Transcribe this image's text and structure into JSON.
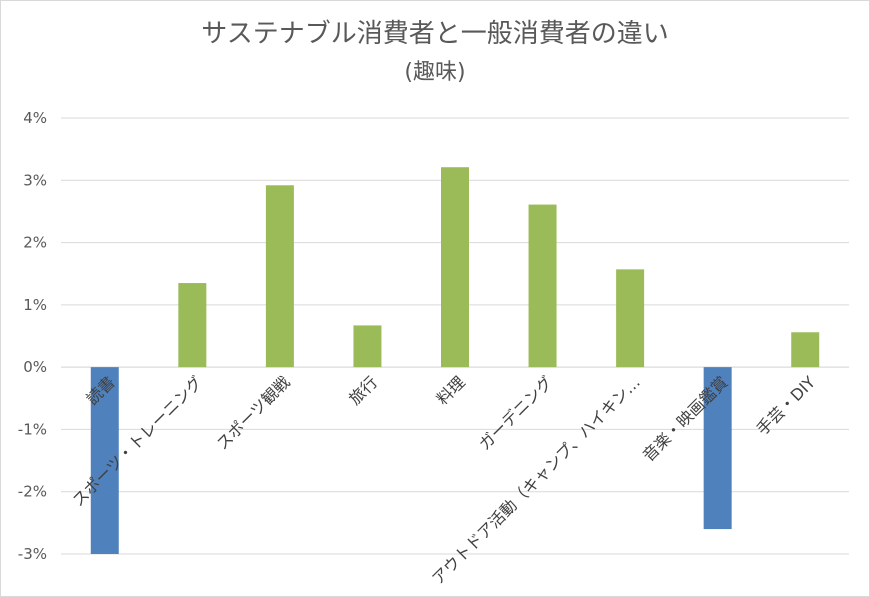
{
  "chart_data": {
    "type": "bar",
    "title": "サステナブル消費者と一般消費者の違い",
    "subtitle": "(趣味)",
    "categories": [
      "読書",
      "スポーツ・トレーニング",
      "スポーツ観戦",
      "旅行",
      "料理",
      "ガーデニング",
      "アウトドア活動（キャンプ、ハイキン…",
      "音楽・映画鑑賞",
      "手芸・DIY"
    ],
    "values": [
      -3.0,
      1.35,
      2.92,
      0.67,
      3.21,
      2.61,
      1.57,
      -2.6,
      0.56
    ],
    "unit": "%",
    "ylim": [
      -3,
      4
    ],
    "yticks": [
      4,
      3,
      2,
      1,
      0,
      -1,
      -2,
      -3
    ],
    "ytick_labels": [
      "4%",
      "3%",
      "2%",
      "1%",
      "0%",
      "-1%",
      "-2%",
      "-3%"
    ],
    "colors": {
      "positive": "#9bbb59",
      "negative": "#4f81bd",
      "grid": "#d9d9d9",
      "text": "#595959"
    },
    "grid": true,
    "legend": "none"
  }
}
